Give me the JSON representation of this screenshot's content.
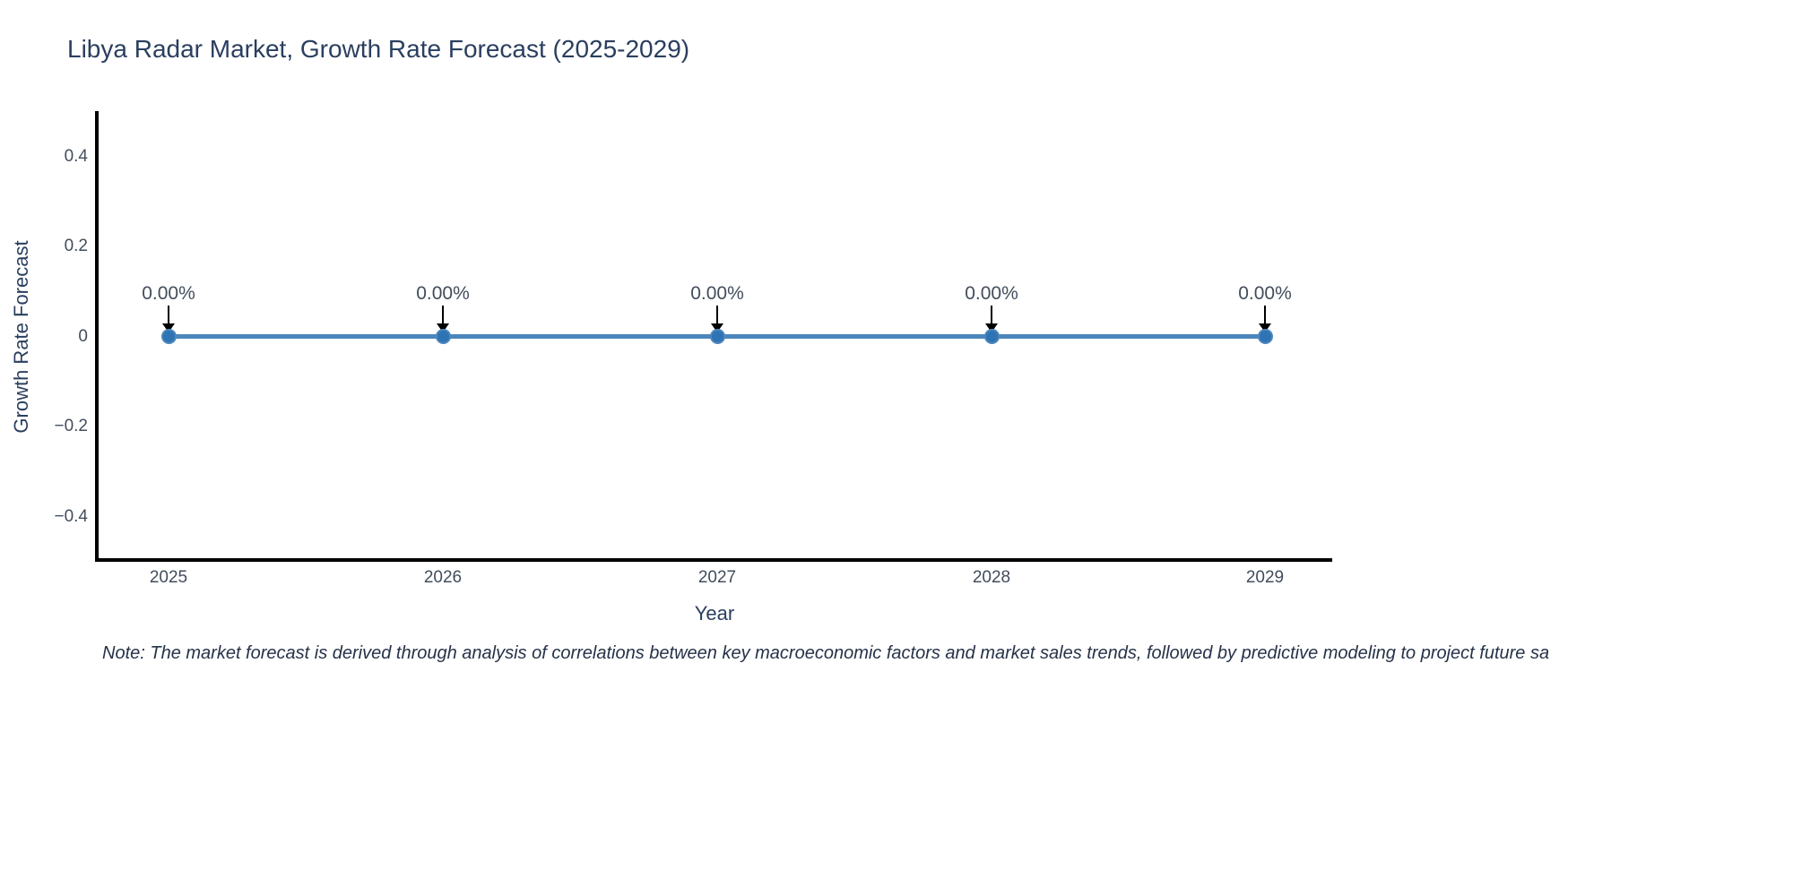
{
  "title": {
    "text": "Libya Radar Market, Growth Rate Forecast (2025-2029)",
    "color": "#2a3f5f"
  },
  "chart_data": {
    "type": "line",
    "x": [
      "2025",
      "2026",
      "2027",
      "2028",
      "2029"
    ],
    "series": [
      {
        "name": "Growth Rate Forecast",
        "values": [
          0,
          0,
          0,
          0,
          0
        ]
      }
    ],
    "point_labels": [
      "0.00%",
      "0.00%",
      "0.00%",
      "0.00%",
      "0.00%"
    ],
    "xlabel": "Year",
    "ylabel": "Growth Rate Forecast",
    "yticks": [
      "0.4",
      "0.2",
      "0",
      "−0.2",
      "−0.4"
    ],
    "ytick_values": [
      0.4,
      0.2,
      0,
      -0.2,
      -0.4
    ],
    "ylim": [
      -0.5,
      0.52
    ],
    "grid": false,
    "legend_position": "none",
    "line_color": "#4c86bc",
    "marker_color": "#2e74b4",
    "arrow_color": "#000000",
    "axis_line_color": "#000000",
    "tick_label_color": "#424d5c",
    "title_color": "#2a3f5f",
    "background_color": "#ffffff"
  },
  "note": {
    "text": "Note: The market forecast is derived through analysis of correlations between key macroeconomic factors and market sales trends, followed by predictive modeling to project future sa"
  }
}
